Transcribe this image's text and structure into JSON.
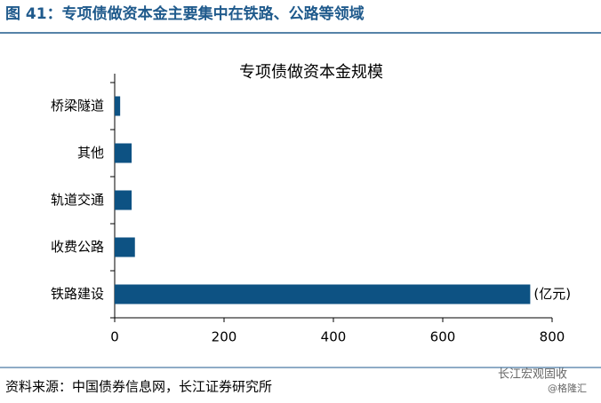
{
  "header": {
    "title": "图 41：专项债做资本金主要集中在铁路、公路等领域"
  },
  "chart_data": {
    "type": "hbar",
    "title": "专项债做资本金规模",
    "categories": [
      "桥梁隧道",
      "其他",
      "轨道交通",
      "收费公路",
      "铁路建设"
    ],
    "values": [
      10,
      31,
      31,
      37,
      760
    ],
    "color": "#0d5283",
    "xlim": [
      0,
      800
    ],
    "xticks": [
      0,
      200,
      400,
      600,
      800
    ],
    "unit": "(亿元)"
  },
  "footer": {
    "source": "资料来源：中国债券信息网，长江证券研究所",
    "watermark": "长江宏观固收",
    "credit": "@格隆汇"
  }
}
